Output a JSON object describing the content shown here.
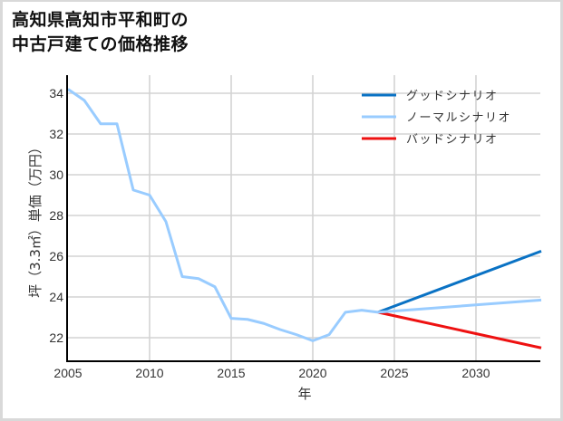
{
  "title": {
    "line1": "高知県高知市平和町の",
    "line2": "中古戸建ての価格推移"
  },
  "colors": {
    "good": "#0a72c4",
    "normal": "#99ccff",
    "bad": "#ee1111",
    "grid": "#d3d3d3",
    "axis": "#000000",
    "border": "#d9d9d9"
  },
  "chart_data": {
    "type": "line",
    "title": "高知県高知市平和町の中古戸建ての価格推移",
    "xlabel": "年",
    "ylabel": "坪（3.3㎡）単価（万円）",
    "xlim": [
      2005,
      2034
    ],
    "ylim": [
      21,
      34.5
    ],
    "xticks": [
      2005,
      2010,
      2015,
      2020,
      2025,
      2030
    ],
    "yticks": [
      22,
      24,
      26,
      28,
      30,
      32,
      34
    ],
    "grid": true,
    "legend_position": "upper right",
    "legend": [
      "グッドシナリオ",
      "ノーマルシナリオ",
      "バッドシナリオ"
    ],
    "series": [
      {
        "name": "ノーマルシナリオ",
        "color": "#99ccff",
        "x": [
          2005,
          2006,
          2007,
          2008,
          2009,
          2010,
          2011,
          2012,
          2013,
          2014,
          2015,
          2016,
          2017,
          2018,
          2019,
          2020,
          2021,
          2022,
          2023,
          2024,
          2034
        ],
        "values": [
          34.2,
          33.65,
          32.5,
          32.5,
          29.25,
          29.0,
          27.7,
          25.0,
          24.9,
          24.5,
          22.95,
          22.9,
          22.7,
          22.4,
          22.15,
          21.85,
          22.15,
          23.25,
          23.35,
          23.25,
          23.85
        ]
      },
      {
        "name": "グッドシナリオ",
        "color": "#0a72c4",
        "x": [
          2024,
          2034
        ],
        "values": [
          23.25,
          26.25
        ]
      },
      {
        "name": "バッドシナリオ",
        "color": "#ee1111",
        "x": [
          2024,
          2034
        ],
        "values": [
          23.25,
          21.5
        ]
      }
    ]
  }
}
